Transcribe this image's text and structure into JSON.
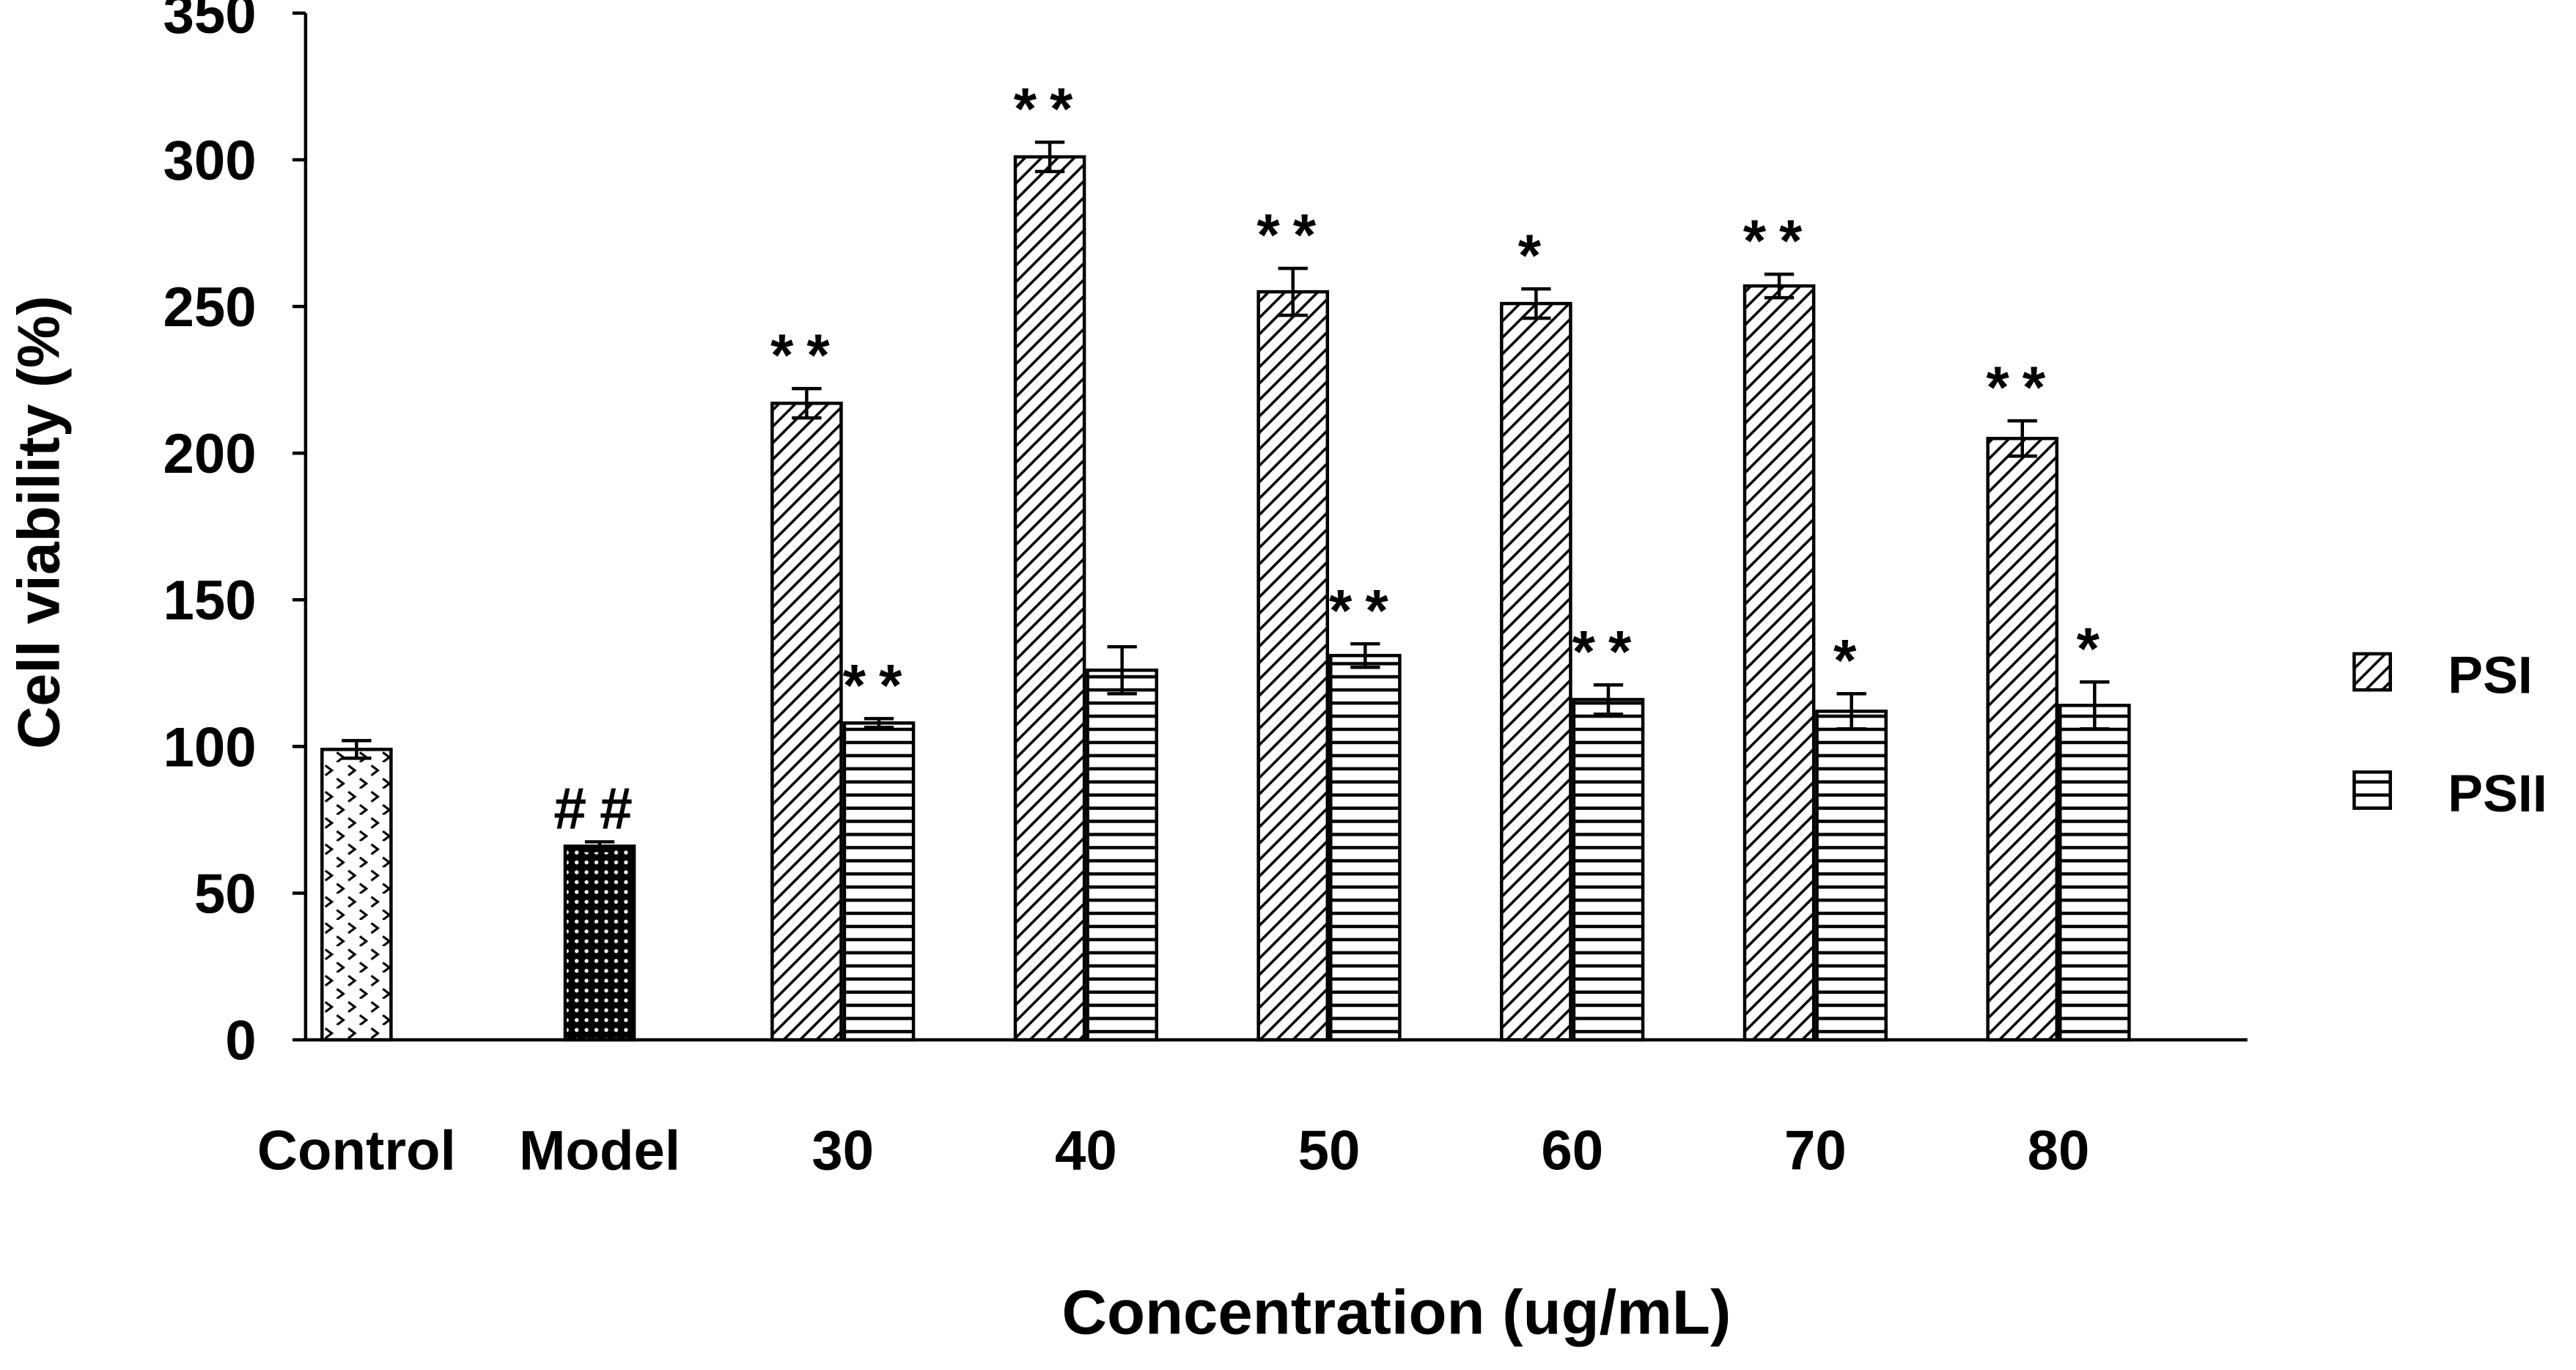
{
  "chart_data": {
    "type": "bar",
    "x_label": "Concentration (ug/mL)",
    "y_label": "Cell viability (%)",
    "categories": [
      "Control",
      "Model",
      "30",
      "40",
      "50",
      "60",
      "70",
      "80"
    ],
    "ylim": [
      0,
      350
    ],
    "yticks": [
      0,
      50,
      100,
      150,
      200,
      250,
      300,
      350
    ],
    "legend": "right",
    "series": [
      {
        "color": "#000000",
        "patterns": [
          "zigzag",
          "dots",
          null,
          null,
          null,
          null,
          null,
          null
        ],
        "values": [
          99,
          66,
          null,
          null,
          null,
          null,
          null,
          null
        ],
        "errors": [
          3,
          1.5,
          null,
          null,
          null,
          null,
          null,
          null
        ],
        "annotations": [
          null,
          "##",
          null,
          null,
          null,
          null,
          null,
          null
        ]
      },
      {
        "name": "PSI",
        "color": "#000000",
        "pattern": "diagonal",
        "values": [
          null,
          null,
          217,
          301,
          255,
          251,
          257,
          205
        ],
        "errors": [
          null,
          null,
          5,
          5,
          8,
          5,
          4,
          6
        ],
        "annotations": [
          null,
          null,
          "**",
          "**",
          "**",
          "*",
          "**",
          "**"
        ]
      },
      {
        "name": "PSII",
        "color": "#000000",
        "pattern": "horizontal",
        "values": [
          null,
          null,
          108,
          126,
          131,
          116,
          112,
          114
        ],
        "errors": [
          null,
          null,
          1.5,
          8,
          4,
          5,
          6,
          8
        ],
        "annotations": [
          null,
          null,
          "**",
          null,
          "**",
          "**",
          "*",
          "*"
        ]
      }
    ]
  }
}
